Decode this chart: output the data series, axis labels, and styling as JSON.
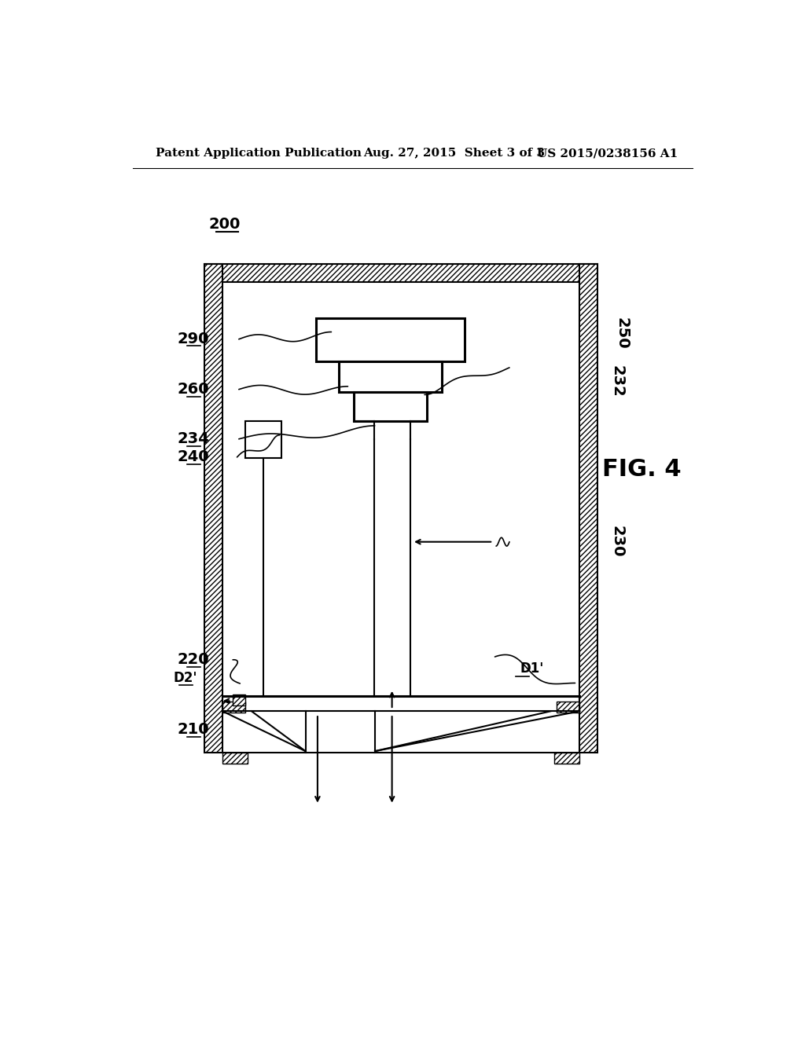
{
  "bg_color": "#ffffff",
  "line_color": "#000000",
  "header_left": "Patent Application Publication",
  "header_mid": "Aug. 27, 2015  Sheet 3 of 3",
  "header_right": "US 2015/0238156 A1",
  "fig_label": "FIG. 4",
  "label_200": "200",
  "label_250": "250",
  "label_232": "232",
  "label_290": "290",
  "label_260": "260",
  "label_230": "230",
  "label_234": "234",
  "label_240": "240",
  "label_220": "220",
  "label_D2p": "D2'",
  "label_D1p": "D1'",
  "label_210": "210"
}
